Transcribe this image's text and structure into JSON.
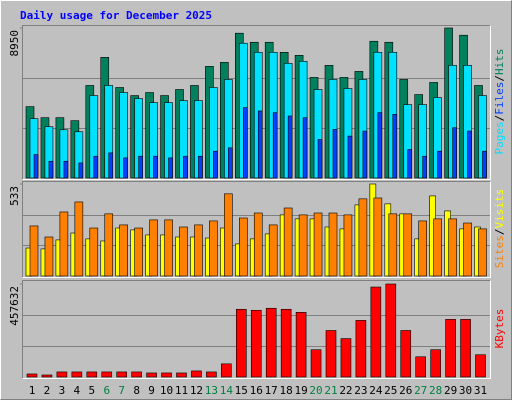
{
  "chart_data": [
    {
      "type": "bar",
      "title": "Daily usage for December 2025",
      "title_color": "#0000ff",
      "ylim": [
        0,
        8950
      ],
      "yticks": [
        8950
      ],
      "gridlines": [
        2983.3,
        5966.7
      ],
      "legend_separator": "/",
      "series": [
        {
          "name": "Hits",
          "color": "#00805c",
          "values": [
            4260,
            3600,
            3600,
            3420,
            5520,
            7200,
            5400,
            4920,
            5100,
            4920,
            5280,
            5520,
            6660,
            6900,
            8640,
            8100,
            8100,
            7500,
            7320,
            6000,
            6720,
            6000,
            6360,
            8160,
            8100,
            5880,
            4980,
            5700,
            8950,
            8520,
            5520
          ]
        },
        {
          "name": "Files",
          "color": "#0040ff",
          "values": [
            1400,
            1000,
            1000,
            900,
            1300,
            1500,
            1200,
            1300,
            1300,
            1200,
            1300,
            1300,
            1600,
            1800,
            4200,
            4000,
            3900,
            3700,
            3600,
            2300,
            2900,
            2500,
            2800,
            3900,
            3800,
            1700,
            1300,
            1600,
            3000,
            2800,
            1600
          ]
        },
        {
          "name": "Pages",
          "color": "#00e0ff",
          "values": [
            3540,
            3060,
            2880,
            2760,
            4920,
            5520,
            5100,
            4740,
            4500,
            4500,
            4620,
            4620,
            5400,
            5880,
            8040,
            7500,
            7500,
            6840,
            6960,
            5280,
            5880,
            5340,
            5880,
            7500,
            7500,
            4380,
            4380,
            4800,
            6720,
            6720,
            4920
          ]
        }
      ]
    },
    {
      "type": "bar",
      "ylim": [
        0,
        533
      ],
      "yticks": [
        533
      ],
      "gridlines": [
        177.7,
        355.3
      ],
      "legend_separator": "/",
      "series": [
        {
          "name": "Visits",
          "color": "#ffff00",
          "values": [
            162,
            157,
            209,
            249,
            215,
            203,
            278,
            267,
            238,
            238,
            226,
            226,
            220,
            278,
            186,
            215,
            244,
            354,
            331,
            331,
            284,
            273,
            412,
            533,
            418,
            360,
            215,
            464,
            377,
            273,
            284
          ]
        },
        {
          "name": "Sites",
          "color": "#ff8000",
          "values": [
            290,
            226,
            371,
            429,
            278,
            360,
            296,
            278,
            325,
            325,
            284,
            296,
            319,
            476,
            336,
            365,
            296,
            394,
            354,
            365,
            365,
            354,
            447,
            452,
            360,
            360,
            319,
            331,
            331,
            307,
            273
          ]
        }
      ]
    },
    {
      "type": "bar",
      "ylim": [
        0,
        457632
      ],
      "yticks": [
        457632
      ],
      "gridlines": [
        152544,
        305088
      ],
      "categories": [
        "1",
        "2",
        "3",
        "4",
        "5",
        "6",
        "7",
        "8",
        "9",
        "10",
        "11",
        "12",
        "13",
        "14",
        "15",
        "16",
        "17",
        "18",
        "19",
        "20",
        "21",
        "22",
        "23",
        "24",
        "25",
        "26",
        "27",
        "28",
        "29",
        "30",
        "31"
      ],
      "category_colors": [
        "#000000",
        "#000000",
        "#000000",
        "#000000",
        "#000000",
        "#008040",
        "#008040",
        "#000000",
        "#000000",
        "#000000",
        "#000000",
        "#000000",
        "#008040",
        "#008040",
        "#000000",
        "#000000",
        "#000000",
        "#000000",
        "#000000",
        "#008040",
        "#008040",
        "#000000",
        "#000000",
        "#000000",
        "#000000",
        "#000000",
        "#008040",
        "#008040",
        "#000000",
        "#000000",
        "#000000"
      ],
      "series": [
        {
          "name": "KBytes",
          "color": "#ff0000",
          "values": [
            14922,
            9948,
            24870,
            24870,
            24870,
            24870,
            24870,
            24870,
            19896,
            19896,
            19896,
            29844,
            24870,
            64662,
            333258,
            328284,
            338232,
            333258,
            318336,
            134298,
            228804,
            189012,
            278544,
            442686,
            457632,
            228804,
            99480,
            134298,
            283518,
            283518,
            109428
          ]
        }
      ]
    }
  ]
}
